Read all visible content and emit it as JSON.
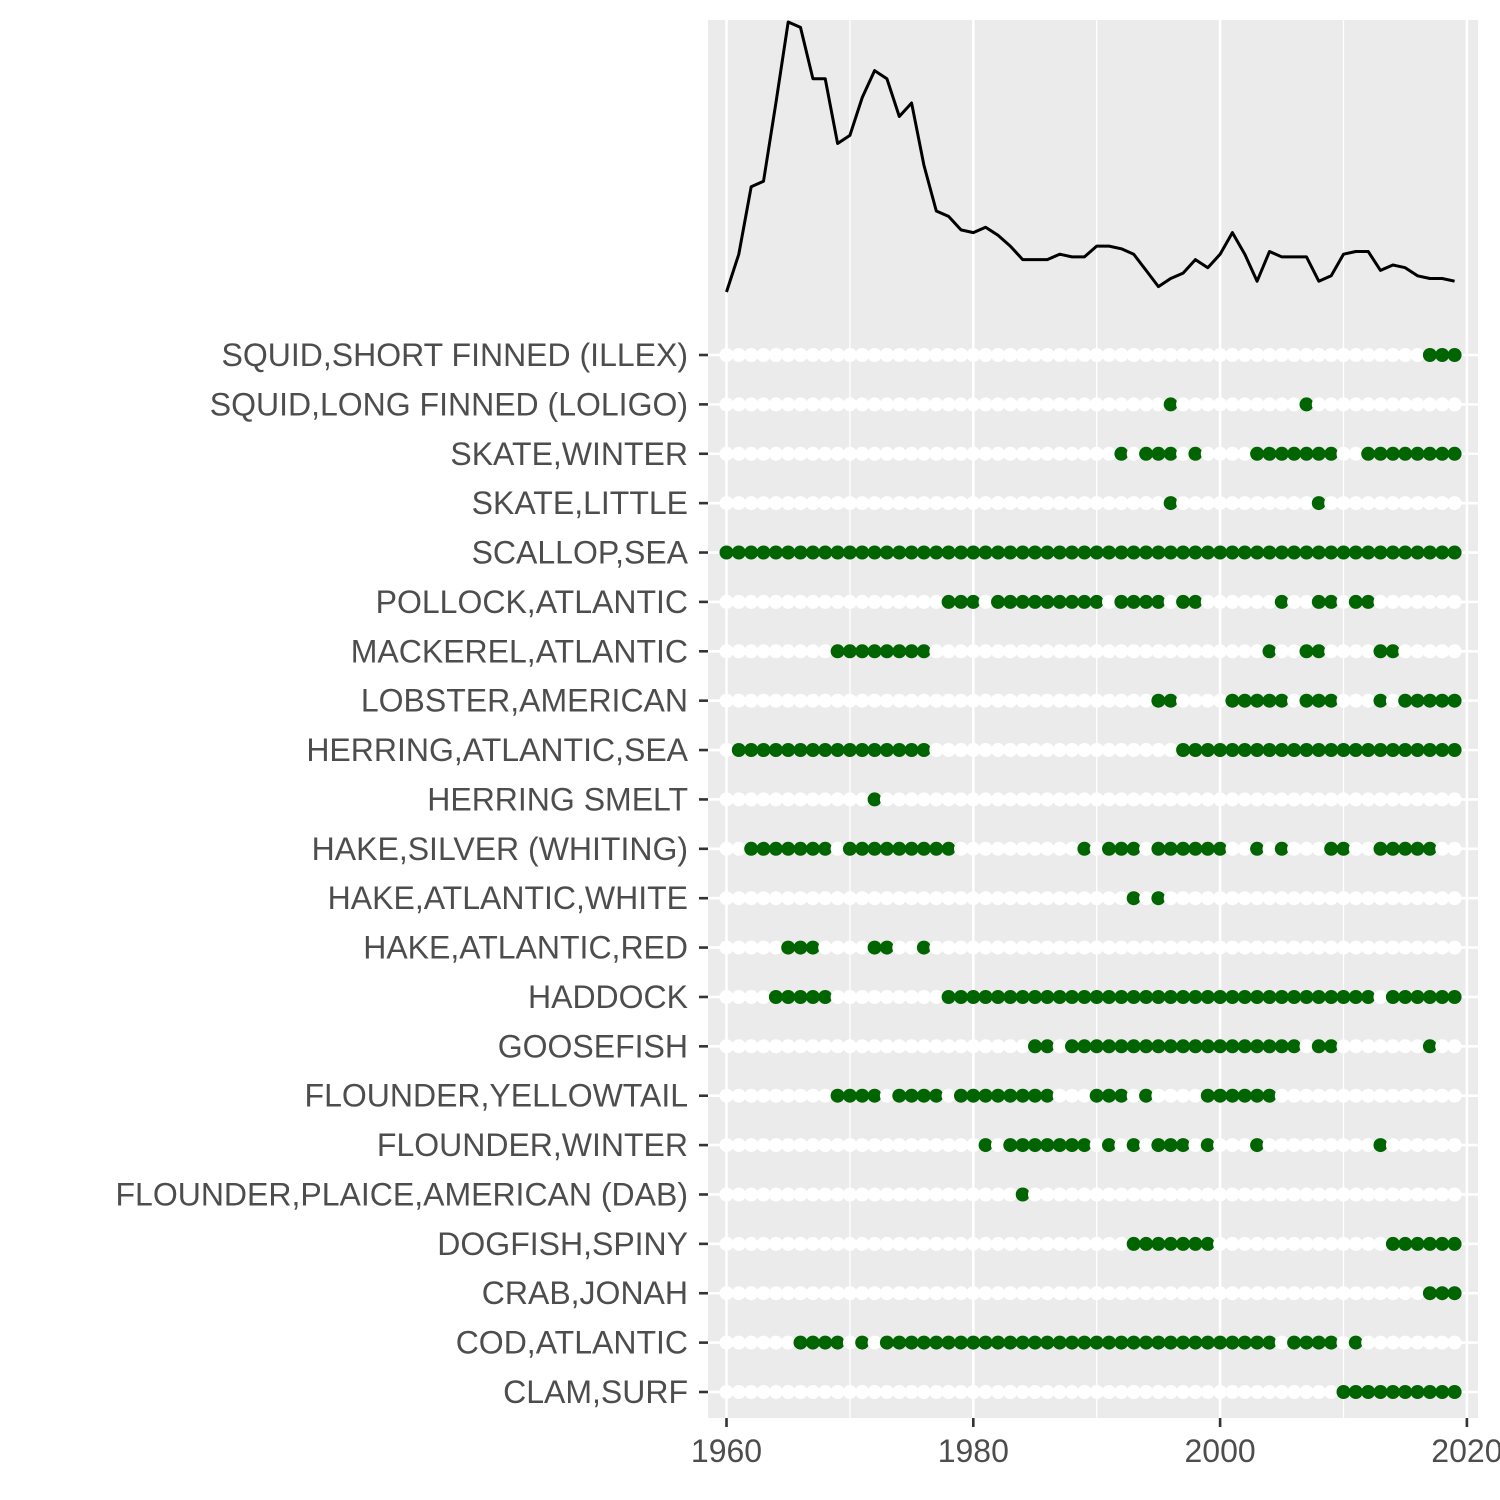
{
  "chart_data": [
    {
      "type": "line",
      "title": "",
      "xlabel": "",
      "ylabel": "",
      "y_axis_shown": false,
      "xlim": [
        1958.5,
        2020.9
      ],
      "series": [
        {
          "color": "#000000",
          "x": [
            1960,
            1961,
            1962,
            1963,
            1964,
            1965,
            1966,
            1967,
            1968,
            1969,
            1970,
            1971,
            1972,
            1973,
            1974,
            1975,
            1976,
            1977,
            1978,
            1979,
            1980,
            1981,
            1982,
            1983,
            1984,
            1985,
            1986,
            1987,
            1988,
            1989,
            1990,
            1991,
            1992,
            1993,
            1994,
            1995,
            1996,
            1997,
            1998,
            1999,
            2000,
            2001,
            2002,
            2003,
            2004,
            2005,
            2006,
            2007,
            2008,
            2009,
            2010,
            2011,
            2012,
            2013,
            2014,
            2015,
            2016,
            2017,
            2018,
            2019
          ],
          "y": [
            0.0,
            0.14,
            0.39,
            0.41,
            0.7,
            1.0,
            0.98,
            0.79,
            0.79,
            0.55,
            0.58,
            0.72,
            0.82,
            0.79,
            0.65,
            0.7,
            0.47,
            0.3,
            0.28,
            0.23,
            0.22,
            0.24,
            0.21,
            0.17,
            0.12,
            0.12,
            0.12,
            0.14,
            0.13,
            0.13,
            0.17,
            0.17,
            0.16,
            0.14,
            0.08,
            0.02,
            0.05,
            0.07,
            0.12,
            0.09,
            0.14,
            0.22,
            0.14,
            0.04,
            0.15,
            0.13,
            0.13,
            0.13,
            0.04,
            0.06,
            0.14,
            0.15,
            0.15,
            0.08,
            0.1,
            0.09,
            0.06,
            0.05,
            0.05,
            0.04
          ]
        }
      ]
    },
    {
      "type": "scatter",
      "title": "",
      "xlabel": "",
      "ylabel": "",
      "xlim": [
        1958.5,
        2020.9
      ],
      "x_ticks": [
        "1960",
        "1980",
        "2000",
        "2020"
      ],
      "year_range": [
        1960,
        2019
      ],
      "present_color": "#006400",
      "absent_color": "#ffffff",
      "grid": true,
      "categories": [
        "CLAM,SURF",
        "COD,ATLANTIC",
        "CRAB,JONAH",
        "DOGFISH,SPINY",
        "FLOUNDER,PLAICE,AMERICAN (DAB)",
        "FLOUNDER,WINTER",
        "FLOUNDER,YELLOWTAIL",
        "GOOSEFISH",
        "HADDOCK",
        "HAKE,ATLANTIC,RED",
        "HAKE,ATLANTIC,WHITE",
        "HAKE,SILVER (WHITING)",
        "HERRING SMELT",
        "HERRING,ATLANTIC,SEA",
        "LOBSTER,AMERICAN",
        "MACKEREL,ATLANTIC",
        "POLLOCK,ATLANTIC",
        "SCALLOP,SEA",
        "SKATE,LITTLE",
        "SKATE,WINTER",
        "SQUID,LONG FINNED (LOLIGO)",
        "SQUID,SHORT FINNED (ILLEX)"
      ],
      "present_years": [
        [
          [
            2010,
            2019
          ]
        ],
        [
          [
            1966,
            1969
          ],
          [
            1971,
            1971
          ],
          [
            1973,
            2004
          ],
          [
            2006,
            2009
          ],
          [
            2011,
            2011
          ]
        ],
        [
          [
            2017,
            2019
          ]
        ],
        [
          [
            1993,
            1999
          ],
          [
            2014,
            2019
          ]
        ],
        [
          [
            1984,
            1984
          ]
        ],
        [
          [
            1981,
            1981
          ],
          [
            1983,
            1989
          ],
          [
            1991,
            1991
          ],
          [
            1993,
            1993
          ],
          [
            1995,
            1997
          ],
          [
            1999,
            1999
          ],
          [
            2003,
            2003
          ],
          [
            2013,
            2013
          ]
        ],
        [
          [
            1969,
            1972
          ],
          [
            1974,
            1977
          ],
          [
            1979,
            1986
          ],
          [
            1990,
            1992
          ],
          [
            1994,
            1994
          ],
          [
            1999,
            2004
          ]
        ],
        [
          [
            1985,
            1986
          ],
          [
            1988,
            2006
          ],
          [
            2008,
            2009
          ],
          [
            2017,
            2017
          ]
        ],
        [
          [
            1964,
            1968
          ],
          [
            1978,
            2012
          ],
          [
            2014,
            2019
          ]
        ],
        [
          [
            1965,
            1967
          ],
          [
            1972,
            1973
          ],
          [
            1976,
            1976
          ]
        ],
        [
          [
            1993,
            1993
          ],
          [
            1995,
            1995
          ]
        ],
        [
          [
            1962,
            1968
          ],
          [
            1970,
            1978
          ],
          [
            1989,
            1989
          ],
          [
            1991,
            1993
          ],
          [
            1995,
            2000
          ],
          [
            2003,
            2003
          ],
          [
            2005,
            2005
          ],
          [
            2009,
            2010
          ],
          [
            2013,
            2017
          ]
        ],
        [
          [
            1972,
            1972
          ]
        ],
        [
          [
            1961,
            1976
          ],
          [
            1997,
            2019
          ]
        ],
        [
          [
            1995,
            1996
          ],
          [
            2001,
            2005
          ],
          [
            2007,
            2009
          ],
          [
            2013,
            2013
          ],
          [
            2015,
            2019
          ]
        ],
        [
          [
            1969,
            1976
          ],
          [
            2004,
            2004
          ],
          [
            2007,
            2008
          ],
          [
            2013,
            2014
          ]
        ],
        [
          [
            1978,
            1980
          ],
          [
            1982,
            1990
          ],
          [
            1992,
            1995
          ],
          [
            1997,
            1998
          ],
          [
            2005,
            2005
          ],
          [
            2008,
            2009
          ],
          [
            2011,
            2012
          ]
        ],
        [
          [
            1960,
            2019
          ]
        ],
        [
          [
            1996,
            1996
          ],
          [
            2008,
            2008
          ]
        ],
        [
          [
            1992,
            1992
          ],
          [
            1994,
            1996
          ],
          [
            1998,
            1998
          ],
          [
            2003,
            2009
          ],
          [
            2012,
            2019
          ]
        ],
        [
          [
            1996,
            1996
          ],
          [
            2007,
            2007
          ]
        ],
        [
          [
            2017,
            2019
          ]
        ]
      ]
    }
  ]
}
